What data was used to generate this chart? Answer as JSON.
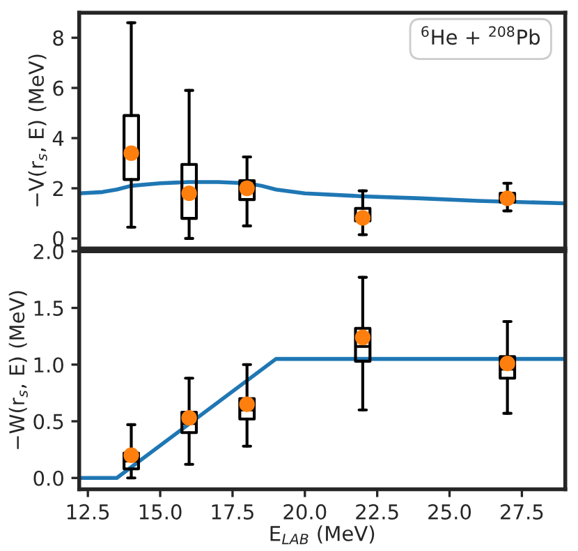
{
  "chart_data": [
    {
      "type": "box",
      "ylabel": "−V(r$_{s}$, E) (MeV)",
      "annotations": [
        "$^{6}$He + $^{208}$Pb"
      ],
      "xlim": [
        12.2,
        29
      ],
      "xticks": [
        12.5,
        15,
        17.5,
        20,
        22.5,
        25,
        27.5
      ],
      "ylim": [
        -0.4,
        9
      ],
      "yticks": [
        0,
        2,
        4,
        6,
        8
      ],
      "tick_labels": "y",
      "grid": false,
      "series": [
        {
          "type": "line",
          "color": "#1f77b4",
          "x": [
            12.2,
            13,
            13.5,
            14,
            15,
            16,
            17,
            18,
            18.5,
            19,
            20,
            22,
            24,
            26,
            29
          ],
          "values": [
            1.8,
            1.85,
            1.95,
            2.1,
            2.2,
            2.25,
            2.25,
            2.2,
            2.1,
            1.95,
            1.8,
            1.68,
            1.6,
            1.5,
            1.4
          ]
        },
        {
          "type": "box",
          "color": "#000000",
          "x": [
            14,
            16,
            18,
            22,
            27
          ],
          "boxes": [
            {
              "low": 0.45,
              "q1": 2.35,
              "median": 3.3,
              "q3": 4.9,
              "high": 8.6,
              "mean": 3.4
            },
            {
              "low": 0.0,
              "q1": 0.8,
              "median": 1.8,
              "q3": 2.95,
              "high": 5.9,
              "mean": 1.8
            },
            {
              "low": 0.5,
              "q1": 1.55,
              "median": 2.0,
              "q3": 2.3,
              "high": 3.25,
              "mean": 2.0
            },
            {
              "low": 0.15,
              "q1": 0.7,
              "median": 0.95,
              "q3": 1.2,
              "high": 1.9,
              "mean": 0.82
            },
            {
              "low": 1.1,
              "q1": 1.45,
              "median": 1.65,
              "q3": 1.8,
              "high": 2.2,
              "mean": 1.6
            }
          ]
        }
      ]
    },
    {
      "type": "box",
      "ylabel": "−W(r$_{s}$, E) (MeV)",
      "xlabel": "E$_{LAB}$ (MeV)",
      "xlim": [
        12.2,
        29
      ],
      "xticks": [
        12.5,
        {
          "value": 15,
          "label": "15.0"
        },
        17.5,
        {
          "value": 20,
          "label": "20.0"
        },
        22.5,
        {
          "value": 25,
          "label": "25.0"
        },
        27.5
      ],
      "ylim": [
        -0.1,
        2.0
      ],
      "yticks": [
        {
          "value": 0,
          "label": "0.0"
        },
        0.5,
        {
          "value": 1,
          "label": "1.0"
        },
        1.5,
        {
          "value": 2,
          "label": "2.0"
        }
      ],
      "grid": false,
      "series": [
        {
          "type": "line",
          "color": "#1f77b4",
          "x": [
            12.2,
            13.5,
            19,
            29
          ],
          "values": [
            0,
            0,
            1.05,
            1.05
          ]
        },
        {
          "type": "box",
          "color": "#000000",
          "x": [
            14,
            16,
            18,
            22,
            27
          ],
          "boxes": [
            {
              "low": 0.0,
              "q1": 0.08,
              "median": 0.15,
              "q3": 0.22,
              "high": 0.47,
              "mean": 0.2
            },
            {
              "low": 0.12,
              "q1": 0.4,
              "median": 0.48,
              "q3": 0.58,
              "high": 0.88,
              "mean": 0.53
            },
            {
              "low": 0.28,
              "q1": 0.52,
              "median": 0.6,
              "q3": 0.7,
              "high": 1.0,
              "mean": 0.65
            },
            {
              "low": 0.6,
              "q1": 1.03,
              "median": 1.16,
              "q3": 1.32,
              "high": 1.77,
              "mean": 1.24
            },
            {
              "low": 0.57,
              "q1": 0.88,
              "median": 0.96,
              "q3": 1.07,
              "high": 1.38,
              "mean": 1.01
            }
          ]
        }
      ]
    }
  ]
}
